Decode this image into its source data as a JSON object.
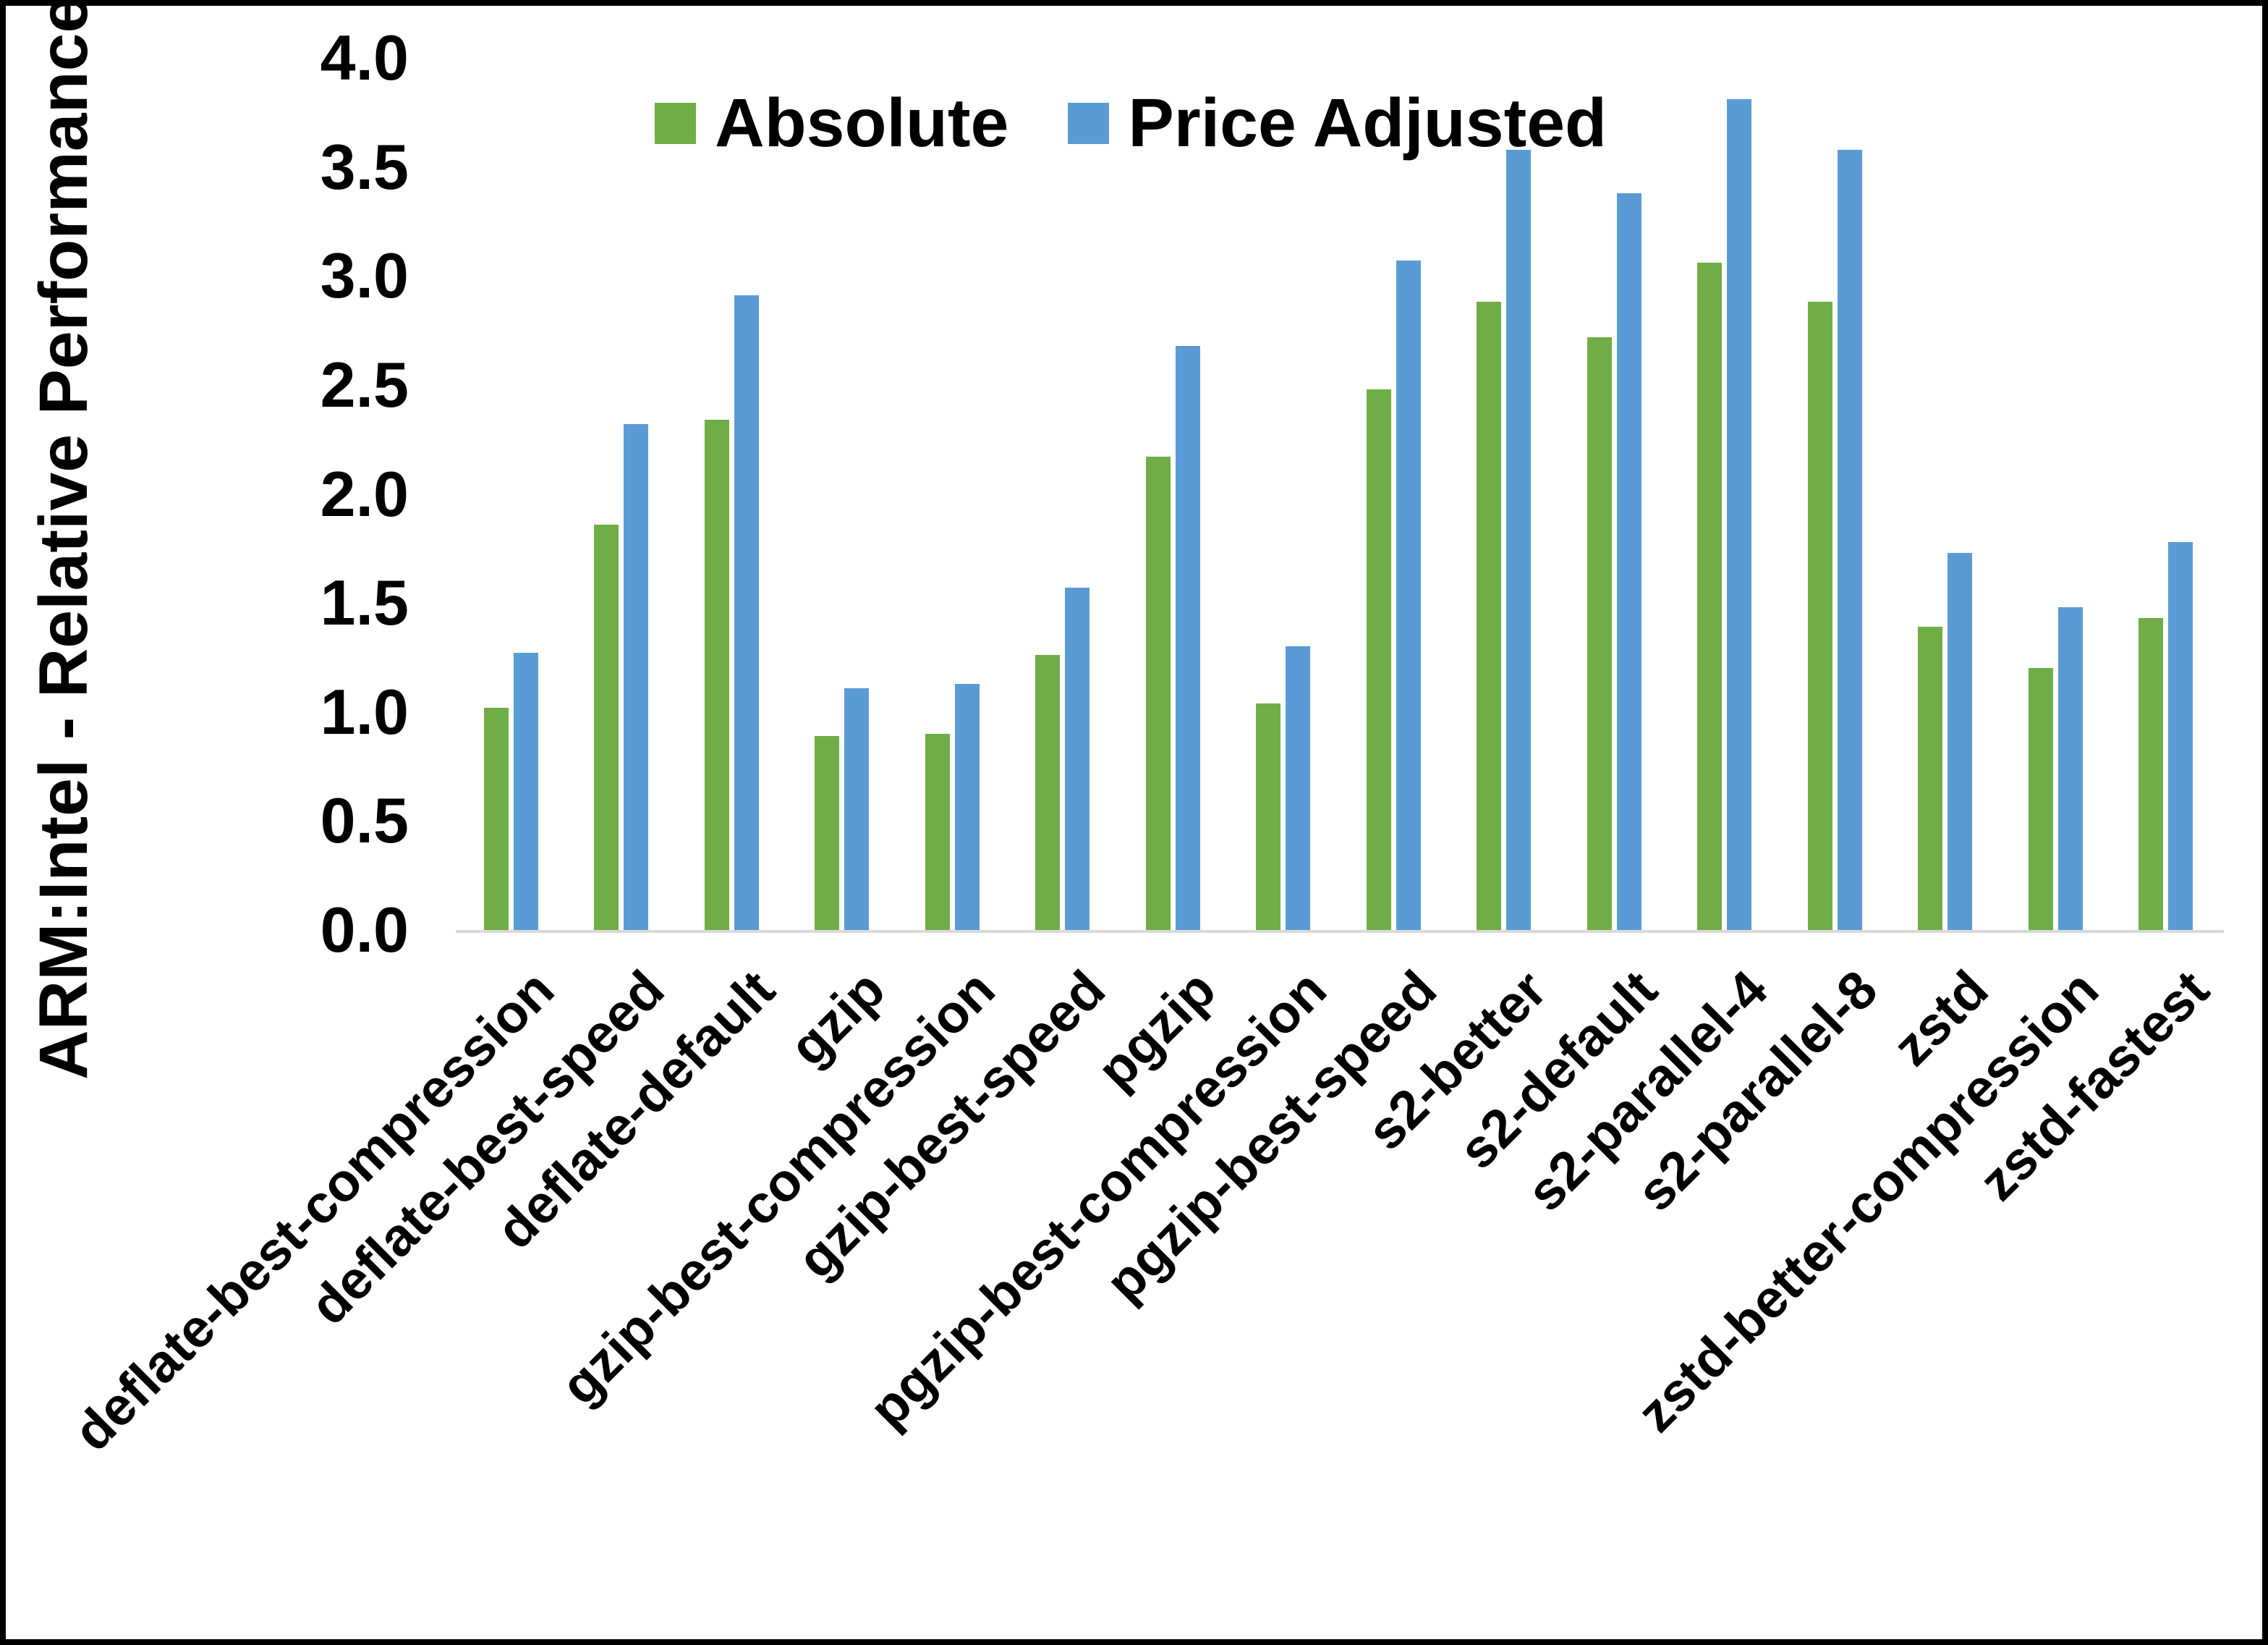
{
  "chart_data": {
    "type": "bar",
    "title": "",
    "xlabel": "",
    "ylabel": "ARM:Intel - Relative Performance",
    "ylim": [
      0.0,
      4.0
    ],
    "ytick_labels": [
      "4.0",
      "3.5",
      "3.0",
      "2.5",
      "2.0",
      "1.5",
      "1.0",
      "0.5",
      "0.0"
    ],
    "grid": false,
    "legend_position": "top-center",
    "categories": [
      "deflate-best-compression",
      "deflate-best-speed",
      "deflate-default",
      "gzip",
      "gzip-best-compression",
      "gzip-best-speed",
      "pgzip",
      "pgzip-best-compression",
      "pgzip-best-speed",
      "s2-better",
      "s2-default",
      "s2-parallel-4",
      "s2-parallel-8",
      "zstd",
      "zstd-better-compression",
      "zstd-fastest"
    ],
    "series": [
      {
        "name": "Absolute",
        "color": "#70AD47",
        "values": [
          1.02,
          1.86,
          2.34,
          0.89,
          0.9,
          1.26,
          2.17,
          1.04,
          2.48,
          2.88,
          2.72,
          3.06,
          2.88,
          1.39,
          1.2,
          1.43
        ]
      },
      {
        "name": "Price Adjusted",
        "color": "#5B9BD5",
        "values": [
          1.27,
          2.32,
          2.91,
          1.11,
          1.13,
          1.57,
          2.68,
          1.3,
          3.07,
          3.58,
          3.38,
          3.81,
          3.58,
          1.73,
          1.48,
          1.78
        ]
      }
    ]
  },
  "colors": {
    "axis_line": "#D9D9D9",
    "frame_border": "#000000",
    "text": "#000000",
    "background": "#FFFFFF"
  }
}
